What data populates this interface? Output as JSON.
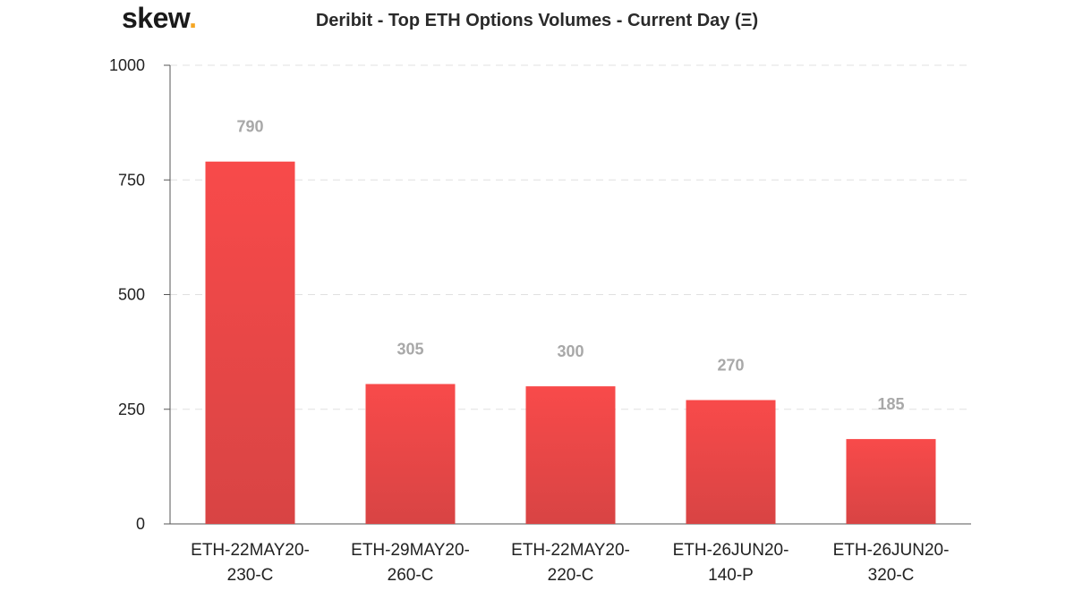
{
  "logo": {
    "text": "skew",
    "dot": "."
  },
  "chart_data": {
    "type": "bar",
    "title": "Deribit - Top ETH Options Volumes - Current Day (Ξ)",
    "categories": [
      [
        "ETH-22MAY20-",
        "230-C"
      ],
      [
        "ETH-29MAY20-",
        "260-C"
      ],
      [
        "ETH-22MAY20-",
        "220-C"
      ],
      [
        "ETH-26JUN20-",
        "140-P"
      ],
      [
        "ETH-26JUN20-",
        "320-C"
      ]
    ],
    "values": [
      790,
      305,
      300,
      270,
      185
    ],
    "data_labels": [
      "790",
      "305",
      "300",
      "270",
      "185"
    ],
    "ylim": [
      0,
      1000
    ],
    "yticks": [
      0,
      250,
      500,
      750,
      1000
    ],
    "ytick_labels": [
      "0",
      "250",
      "500",
      "750",
      "1000"
    ],
    "grid": true,
    "bar_color_top": "#f84a4a",
    "bar_color_bottom": "#d84444",
    "xlabel": "",
    "ylabel": ""
  }
}
